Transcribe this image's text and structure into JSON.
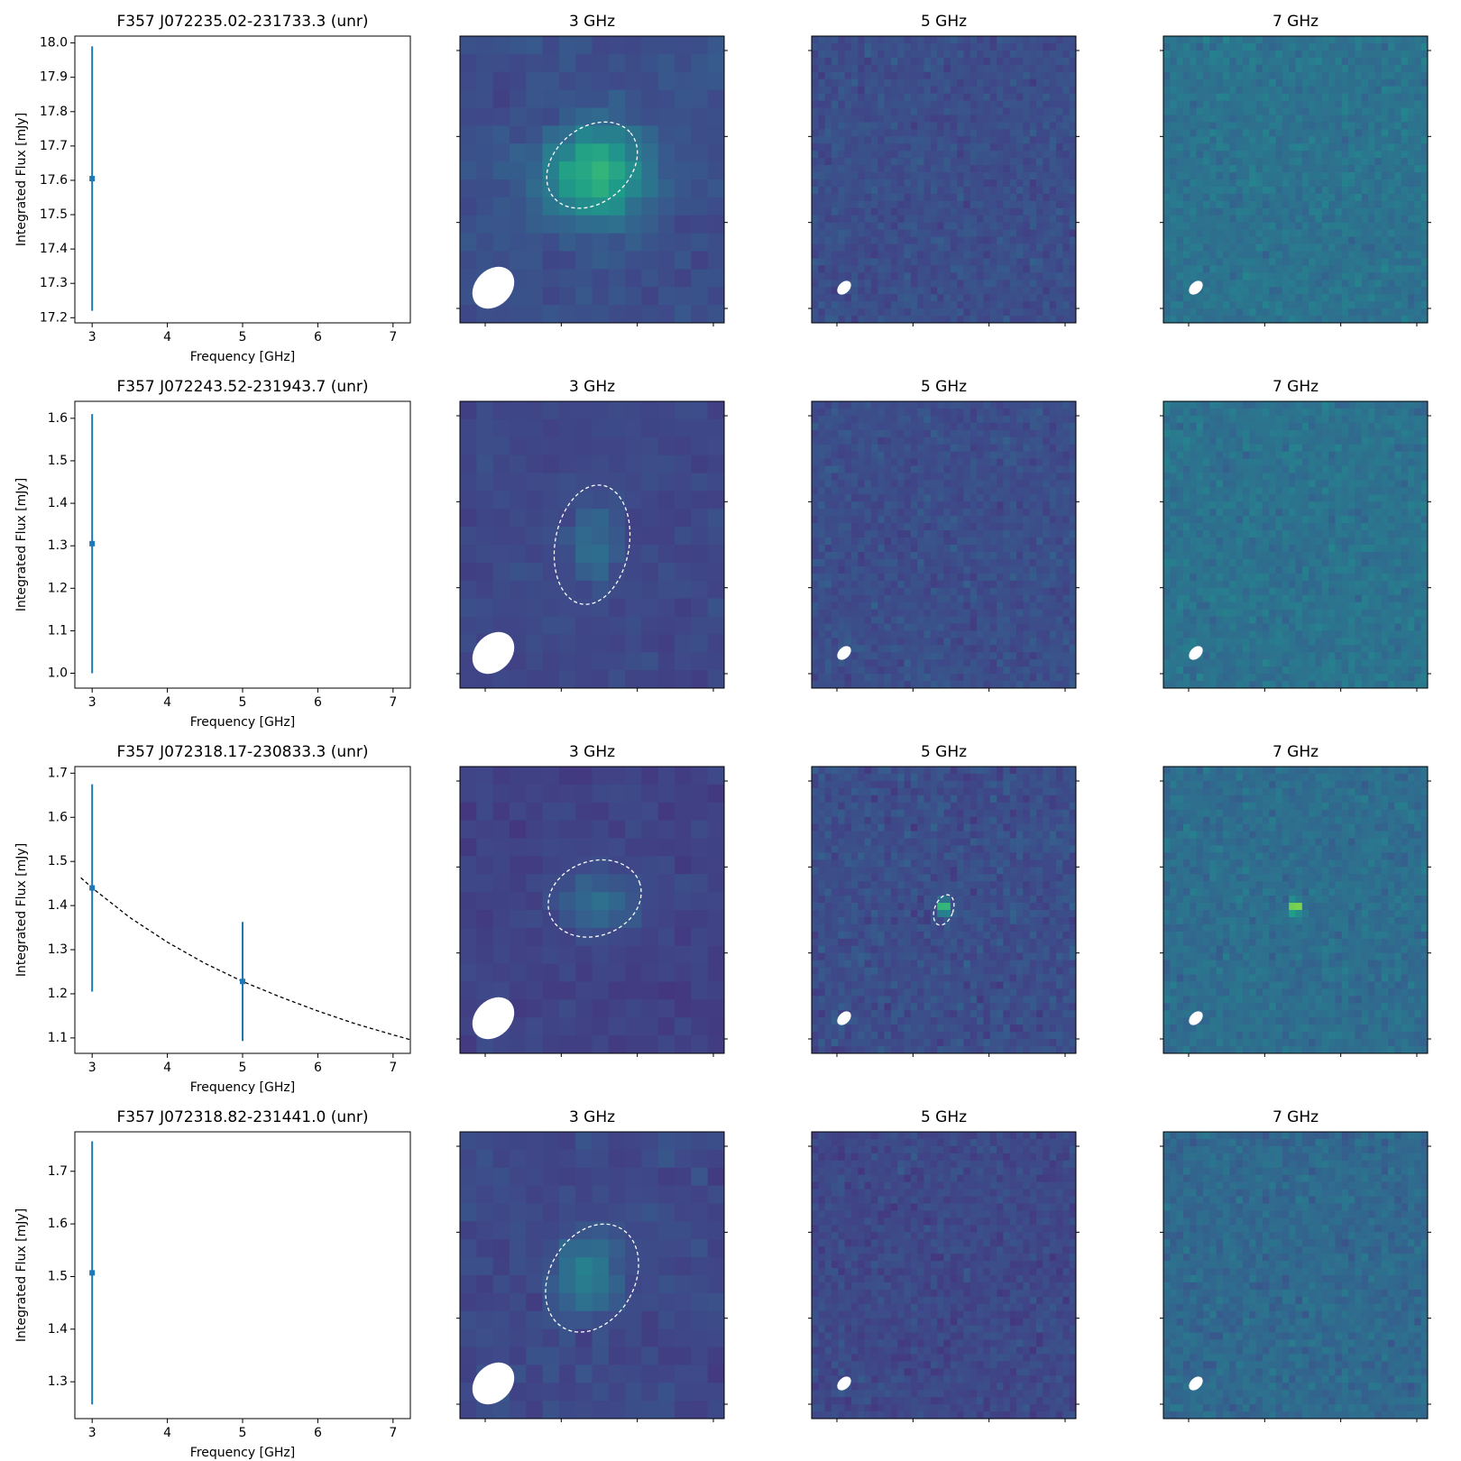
{
  "chart_data": [
    {
      "type": "errorbar",
      "title": "F357 J072235.02-231733.3 (unr)",
      "xlabel": "Frequency [GHz]",
      "ylabel": "Integrated Flux [mJy]",
      "xlim": [
        2.77,
        7.23
      ],
      "ylim": [
        17.185,
        18.02
      ],
      "xticks": [
        3,
        4,
        5,
        6,
        7
      ],
      "yticks": [
        17.2,
        17.3,
        17.4,
        17.5,
        17.6,
        17.7,
        17.8,
        17.9,
        {
          "value": 18,
          "label": "18.0"
        }
      ],
      "series": [
        {
          "color": "#1f77b4",
          "x": [
            3
          ],
          "values": [
            17.605
          ],
          "errors": [
            0.385
          ]
        }
      ],
      "images": [
        {
          "title": "3 GHz"
        },
        {
          "title": "5 GHz"
        },
        {
          "title": "7 GHz"
        }
      ]
    },
    {
      "type": "errorbar",
      "title": "F357 J072243.52-231943.7 (unr)",
      "xlabel": "Frequency [GHz]",
      "ylabel": "Integrated Flux [mJy]",
      "xlim": [
        2.77,
        7.23
      ],
      "ylim": [
        0.965,
        1.64
      ],
      "xticks": [
        3,
        4,
        5,
        6,
        7
      ],
      "yticks": [
        {
          "value": 1,
          "label": "1.0"
        },
        1.1,
        1.2,
        1.3,
        1.4,
        1.5,
        1.6
      ],
      "series": [
        {
          "color": "#1f77b4",
          "x": [
            3
          ],
          "values": [
            1.305
          ],
          "errors": [
            0.305
          ]
        }
      ],
      "images": [
        {
          "title": "3 GHz"
        },
        {
          "title": "5 GHz"
        },
        {
          "title": "7 GHz"
        }
      ]
    },
    {
      "type": "errorbar",
      "title": "F357 J072318.17-230833.3 (unr)",
      "xlabel": "Frequency [GHz]",
      "ylabel": "Integrated Flux [mJy]",
      "xlim": [
        2.77,
        7.23
      ],
      "ylim": [
        1.065,
        1.715
      ],
      "xticks": [
        3,
        4,
        5,
        6,
        7
      ],
      "yticks": [
        1.1,
        1.2,
        1.3,
        1.4,
        1.5,
        1.6,
        1.7
      ],
      "series": [
        {
          "color": "#1f77b4",
          "x": [
            3,
            5
          ],
          "values": [
            1.44,
            1.228
          ],
          "errors": [
            0.235,
            0.135
          ]
        }
      ],
      "fit": {
        "color": "#000000",
        "dashed": true,
        "x": [
          2.85,
          3,
          3.5,
          4,
          4.5,
          5,
          5.5,
          6,
          6.5,
          7,
          7.23
        ],
        "values": [
          1.463,
          1.44,
          1.373,
          1.317,
          1.269,
          1.228,
          1.193,
          1.161,
          1.132,
          1.107,
          1.096
        ]
      },
      "images": [
        {
          "title": "3 GHz"
        },
        {
          "title": "5 GHz"
        },
        {
          "title": "7 GHz"
        }
      ]
    },
    {
      "type": "errorbar",
      "title": "F357 J072318.82-231441.0 (unr)",
      "xlabel": "Frequency [GHz]",
      "ylabel": "Integrated Flux [mJy]",
      "xlim": [
        2.77,
        7.23
      ],
      "ylim": [
        1.23,
        1.775
      ],
      "xticks": [
        3,
        4,
        5,
        6,
        7
      ],
      "yticks": [
        1.3,
        1.4,
        1.5,
        1.6,
        1.7
      ],
      "series": [
        {
          "color": "#1f77b4",
          "x": [
            3
          ],
          "values": [
            1.507
          ],
          "errors": [
            0.25
          ]
        }
      ],
      "images": [
        {
          "title": "3 GHz"
        },
        {
          "title": "5 GHz"
        },
        {
          "title": "7 GHz"
        }
      ]
    }
  ]
}
